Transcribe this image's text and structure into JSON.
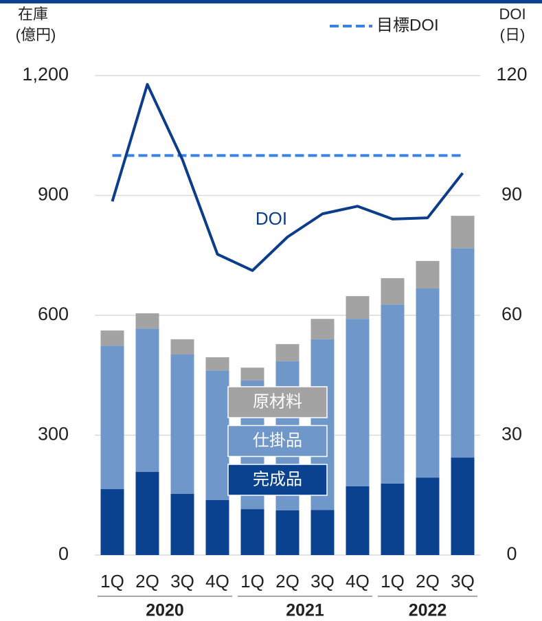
{
  "chart_data": {
    "type": "stacked_bar_line",
    "y_title": [
      "在庫",
      "(億円)"
    ],
    "y2_title": [
      "DOI",
      "(日)"
    ],
    "categories": [
      "1Q",
      "2Q",
      "3Q",
      "4Q",
      "1Q",
      "2Q",
      "3Q",
      "4Q",
      "1Q",
      "2Q",
      "3Q"
    ],
    "groups": [
      {
        "label": "2020",
        "count": 4
      },
      {
        "label": "2021",
        "count": 4
      },
      {
        "label": "2022",
        "count": 3
      }
    ],
    "series": [
      {
        "name": "完成品",
        "color": "#0b4290",
        "values": [
          165,
          208,
          153,
          138,
          115,
          112,
          113,
          172,
          179,
          194,
          244
        ]
      },
      {
        "name": "仕掛品",
        "color": "#6f97c9",
        "values": [
          359,
          359,
          349,
          324,
          322,
          373,
          427,
          419,
          448,
          473,
          524
        ]
      },
      {
        "name": "原材料",
        "color": "#a3a3a3",
        "values": [
          38,
          38,
          38,
          33,
          32,
          43,
          51,
          57,
          66,
          69,
          81
        ]
      },
      {
        "name": "DOI",
        "color": "#0b3d8a",
        "axis": "y2",
        "values": [
          88.5,
          117.8,
          99,
          75.3,
          71.2,
          79.6,
          85.4,
          87.3,
          84.1,
          84.4,
          95.6
        ]
      }
    ],
    "target": {
      "name": "目標DOI",
      "value": 100,
      "color": "#3a82e4"
    },
    "ylim": [
      0,
      1200
    ],
    "yticks": [
      0,
      300,
      600,
      900,
      {
        "value": 1200,
        "label": "1,200"
      }
    ],
    "y2lim": [
      0,
      120
    ],
    "y2ticks": [
      0,
      30,
      60,
      90,
      120
    ],
    "grid": true
  }
}
